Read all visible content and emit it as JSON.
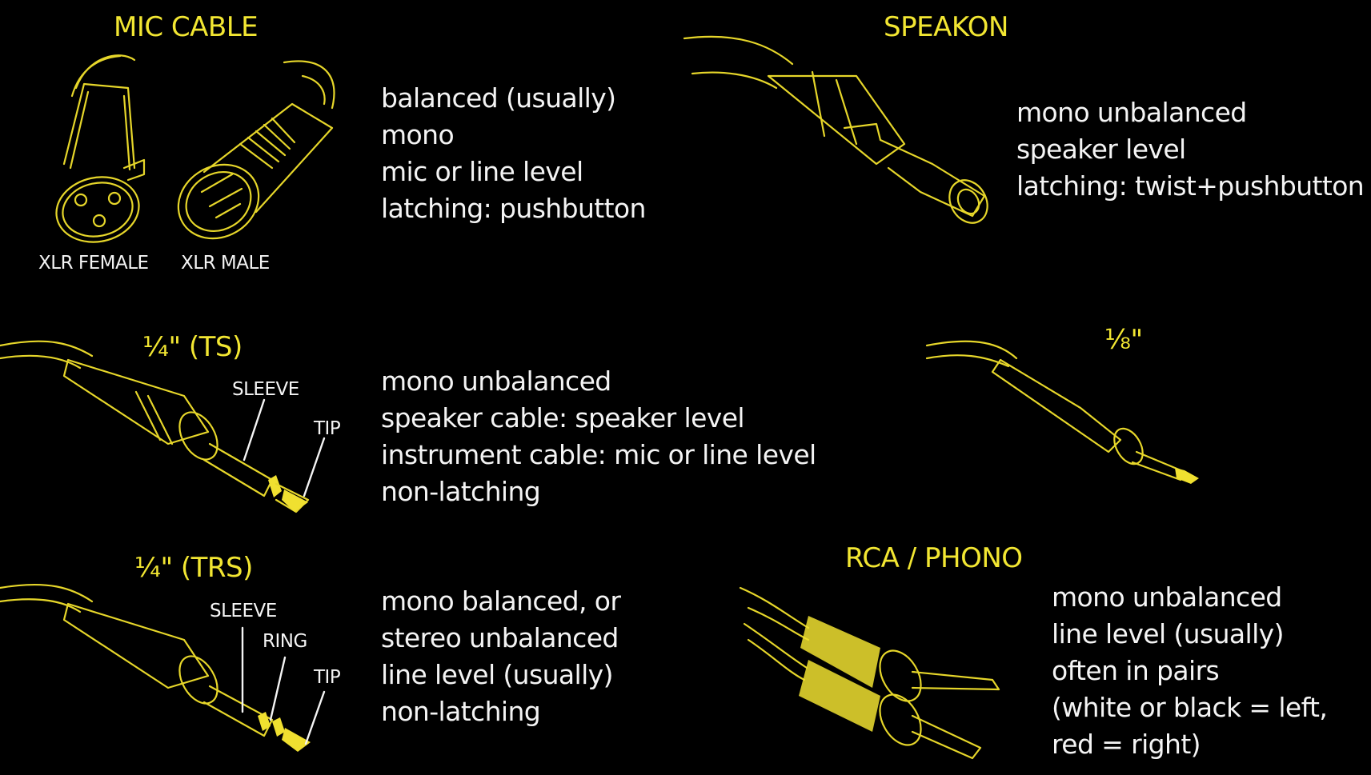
{
  "colors": {
    "background": "#000000",
    "title": "#f2e632",
    "line_art": "#e6d62a",
    "text": "#f4f4f4"
  },
  "connectors": {
    "mic_cable": {
      "title": "MIC CABLE",
      "labels": [
        "XLR FEMALE",
        "XLR MALE"
      ],
      "lines": [
        "balanced (usually)",
        "mono",
        "mic or line level",
        "latching: pushbutton"
      ]
    },
    "speakon": {
      "title": "SPEAKON",
      "lines": [
        "mono unbalanced",
        "speaker level",
        "latching: twist+pushbutton"
      ]
    },
    "quarter_ts": {
      "title": "¼\" (TS)",
      "labels": [
        "SLEEVE",
        "TIP"
      ],
      "lines": [
        "mono unbalanced",
        "speaker cable: speaker level",
        "instrument cable: mic or line level",
        "non-latching"
      ]
    },
    "eighth": {
      "title": "⅛\""
    },
    "quarter_trs": {
      "title": "¼\" (TRS)",
      "labels": [
        "SLEEVE",
        "RING",
        "TIP"
      ],
      "lines": [
        "mono balanced, or",
        "stereo unbalanced",
        "line level (usually)",
        "non-latching"
      ]
    },
    "rca": {
      "title": "RCA / PHONO",
      "lines": [
        "mono unbalanced",
        "line level (usually)",
        "often in pairs",
        "(white or black = left,",
        "red = right)"
      ]
    }
  }
}
